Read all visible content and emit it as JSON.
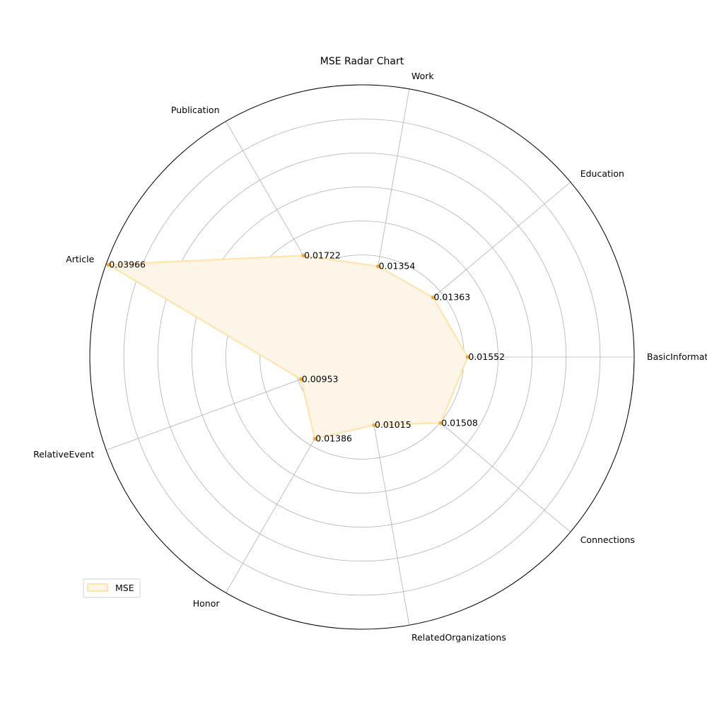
{
  "chart_data": {
    "type": "radar",
    "title": "MSE Radar Chart",
    "categories": [
      "BasicInformation",
      "Education",
      "Work",
      "Publication",
      "Article",
      "RelativeEvent",
      "Honor",
      "RelatedOrganizations",
      "Connections"
    ],
    "series": [
      {
        "name": "MSE",
        "values": [
          0.01552,
          0.01363,
          0.01354,
          0.01722,
          0.03966,
          0.00953,
          0.01386,
          0.01015,
          0.01508
        ],
        "value_labels": [
          "0.01552",
          "0.01363",
          "0.01354",
          "0.01722",
          "0.03966",
          "0.00953",
          "0.01386",
          "0.01015",
          "0.01508"
        ],
        "line_color": "#ffe3a8",
        "fill_color": "#fcf5e8",
        "marker_color": "#f0a830"
      }
    ],
    "rlim": [
      0,
      0.04
    ],
    "grid": true,
    "grid_color": "#b0b0b0",
    "legend_position": "lower-left"
  }
}
